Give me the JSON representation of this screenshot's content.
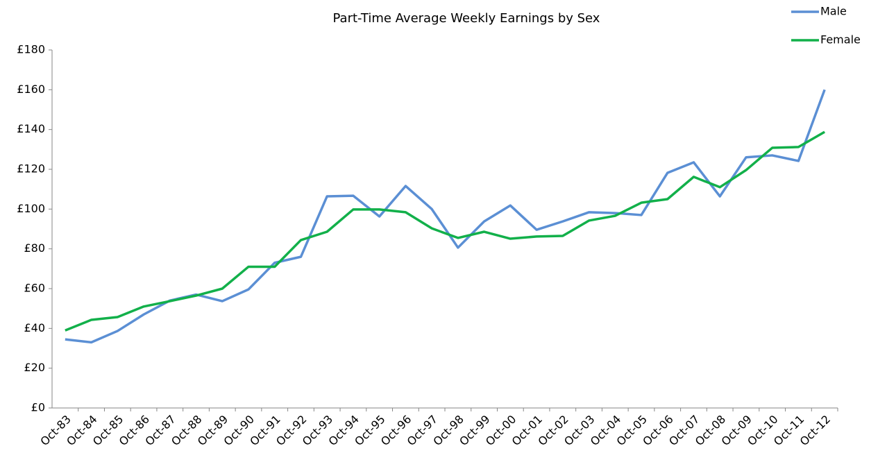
{
  "chart_data": {
    "type": "line",
    "title": "Part-Time Average Weekly Earnings by Sex",
    "categories": [
      "Oct-83",
      "Oct-84",
      "Oct-85",
      "Oct-86",
      "Oct-87",
      "Oct-88",
      "Oct-89",
      "Oct-90",
      "Oct-91",
      "Oct-92",
      "Oct-93",
      "Oct-94",
      "Oct-95",
      "Oct-96",
      "Oct-97",
      "Oct-98",
      "Oct-99",
      "Oct-00",
      "Oct-01",
      "Oct-02",
      "Oct-03",
      "Oct-04",
      "Oct-05",
      "Oct-06",
      "Oct-07",
      "Oct-08",
      "Oct-09",
      "Oct-10",
      "Oct-11",
      "Oct-12"
    ],
    "series": [
      {
        "name": "Male",
        "color": "#5b8fd4",
        "values": [
          34.5,
          33,
          38.7,
          47,
          54,
          57,
          53.7,
          59.6,
          73,
          76,
          106.4,
          106.7,
          96.3,
          111.6,
          100,
          80.6,
          93.8,
          101.8,
          89.6,
          93.8,
          98.4,
          98,
          97,
          118.2,
          123.5,
          106.4,
          126,
          127,
          124.2,
          160
        ]
      },
      {
        "name": "Female",
        "color": "#12b04a",
        "values": [
          39,
          44.3,
          45.7,
          51,
          53.7,
          56.5,
          60,
          71,
          71,
          84.4,
          88.6,
          99.8,
          99.8,
          98.4,
          90.3,
          85.5,
          88.6,
          85.1,
          86.2,
          86.5,
          94.2,
          96.6,
          103.2,
          105,
          116.2,
          111,
          119.6,
          130.8,
          131.2,
          138.8
        ]
      }
    ],
    "ylim": [
      0,
      180
    ],
    "yticks": [
      {
        "value": 0,
        "label": "£0"
      },
      {
        "value": 20,
        "label": "£20"
      },
      {
        "value": 40,
        "label": "£40"
      },
      {
        "value": 60,
        "label": "£60"
      },
      {
        "value": 80,
        "label": "£80"
      },
      {
        "value": 100,
        "label": "£100"
      },
      {
        "value": 120,
        "label": "£120"
      },
      {
        "value": 140,
        "label": "£140"
      },
      {
        "value": 160,
        "label": "£160"
      },
      {
        "value": 180,
        "label": "£180"
      }
    ],
    "legend": "top-right"
  }
}
